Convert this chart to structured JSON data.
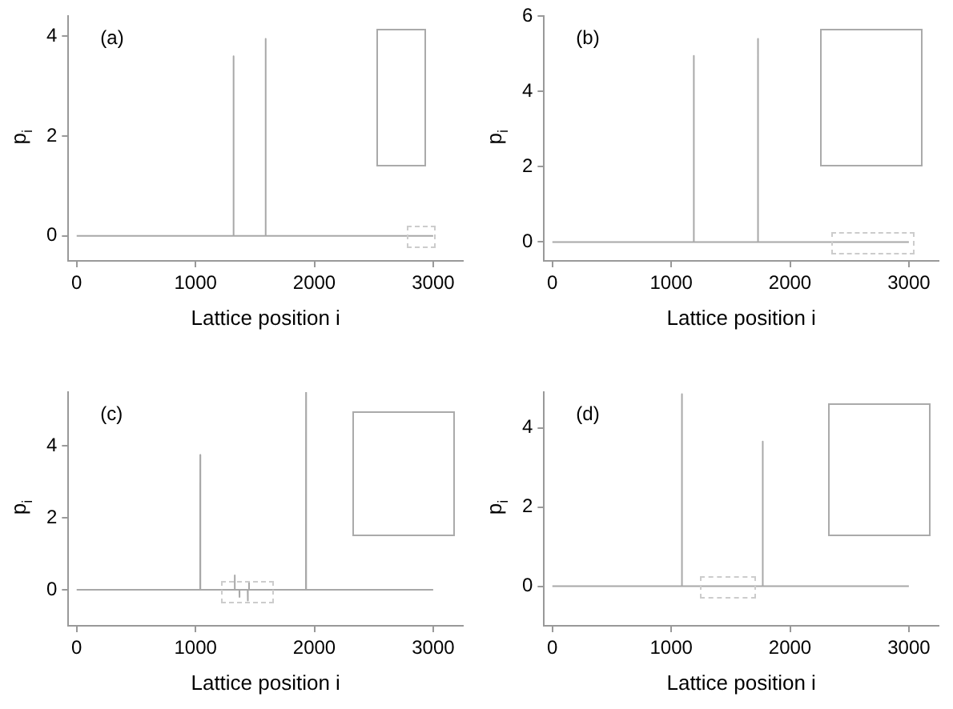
{
  "chart_data": [
    {
      "type": "line",
      "annotations": [
        "(a)"
      ],
      "xlabel": "Lattice position i",
      "ylabel": "p$_{i}$",
      "color": "#a8a8a8",
      "marker": "none",
      "grid": false,
      "legend": false,
      "xlim": [
        -70,
        3250
      ],
      "ylim": [
        -0.5,
        4.4
      ],
      "xticks": [
        0,
        1000,
        2000,
        3000
      ],
      "yticks": [
        0,
        2,
        4
      ],
      "x": [
        0,
        1319,
        1320,
        1321,
        1589,
        1590,
        1591,
        3000
      ],
      "values": [
        0,
        0,
        3.6,
        0,
        0,
        3.95,
        0,
        0
      ]
    },
    {
      "type": "line",
      "annotations": [
        "(b)"
      ],
      "xlabel": "Lattice position i",
      "ylabel": "p$_{i}$",
      "color": "#a8a8a8",
      "marker": "none",
      "grid": false,
      "legend": false,
      "xlim": [
        -70,
        3250
      ],
      "ylim": [
        -0.5,
        6
      ],
      "xticks": [
        0,
        1000,
        2000,
        3000
      ],
      "yticks": [
        0,
        2,
        4,
        6
      ],
      "x": [
        0,
        1189,
        1190,
        1191,
        1729,
        1730,
        1731,
        3000
      ],
      "values": [
        0,
        0,
        4.95,
        0,
        0,
        5.4,
        0,
        0
      ]
    },
    {
      "type": "line",
      "annotations": [
        "(c)"
      ],
      "xlabel": "Lattice position i",
      "ylabel": "p$_{i}$",
      "color": "#a8a8a8",
      "marker": "none",
      "grid": false,
      "legend": false,
      "xlim": [
        -70,
        3250
      ],
      "ylim": [
        -1,
        5.5
      ],
      "xticks": [
        0,
        1000,
        2000,
        3000
      ],
      "yticks": [
        0,
        2,
        4
      ],
      "x": [
        0,
        1039,
        1040,
        1041,
        1329,
        1330,
        1331,
        1369,
        1370,
        1371,
        1439,
        1440,
        1441,
        1449,
        1450,
        1451,
        1929,
        1930,
        1931,
        3000
      ],
      "values": [
        0,
        0,
        3.75,
        0,
        0,
        0.4,
        0,
        0,
        -0.2,
        0,
        0,
        -0.3,
        0,
        0,
        0.2,
        0,
        0,
        5.5,
        0,
        0
      ]
    },
    {
      "type": "line",
      "annotations": [
        "(d)"
      ],
      "xlabel": "Lattice position i",
      "ylabel": "p$_{i}$",
      "color": "#a8a8a8",
      "marker": "none",
      "grid": false,
      "legend": false,
      "xlim": [
        -70,
        3250
      ],
      "ylim": [
        -1,
        4.9
      ],
      "xticks": [
        0,
        1000,
        2000,
        3000
      ],
      "yticks": [
        0,
        2,
        4
      ],
      "x": [
        0,
        1089,
        1090,
        1091,
        1769,
        1770,
        1771,
        3000
      ],
      "values": [
        0,
        0,
        4.85,
        0,
        0,
        3.65,
        0,
        0
      ]
    }
  ]
}
